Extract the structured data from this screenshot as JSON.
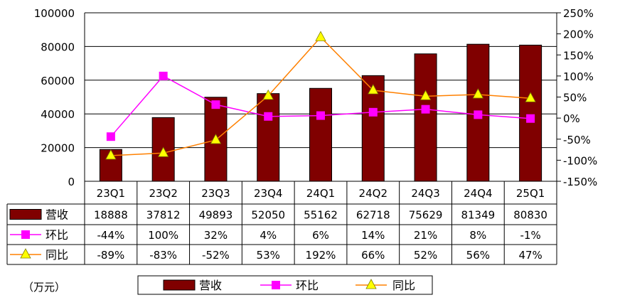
{
  "chart_data": {
    "type": "bar",
    "categories": [
      "23Q1",
      "23Q2",
      "23Q3",
      "23Q4",
      "24Q1",
      "24Q2",
      "24Q3",
      "24Q4",
      "25Q1"
    ],
    "series": [
      {
        "name": "营收",
        "type": "bar",
        "axis": "left",
        "values": [
          18888,
          37812,
          49893,
          52050,
          55162,
          62718,
          75629,
          81349,
          80830
        ],
        "labels": [
          "18888",
          "37812",
          "49893",
          "52050",
          "55162",
          "62718",
          "75629",
          "81349",
          "80830"
        ],
        "color": "#800000"
      },
      {
        "name": "环比",
        "type": "line",
        "axis": "right",
        "marker": "square",
        "values": [
          -44,
          100,
          32,
          4,
          6,
          14,
          21,
          8,
          -1
        ],
        "labels": [
          "-44%",
          "100%",
          "32%",
          "4%",
          "6%",
          "14%",
          "21%",
          "8%",
          "-1%"
        ],
        "color": "#ff00ff"
      },
      {
        "name": "同比",
        "type": "line",
        "axis": "right",
        "marker": "triangle",
        "values": [
          -89,
          -83,
          -52,
          53,
          192,
          66,
          52,
          56,
          47
        ],
        "labels": [
          "-89%",
          "-83%",
          "-52%",
          "53%",
          "192%",
          "66%",
          "52%",
          "56%",
          "47%"
        ],
        "color": "#ff8000",
        "marker_color": "#ffff00"
      }
    ],
    "yleft": {
      "min": 0,
      "max": 100000,
      "ticks": [
        "0",
        "20000",
        "40000",
        "60000",
        "80000",
        "100000"
      ]
    },
    "yright": {
      "min": -150,
      "max": 250,
      "ticks": [
        "-150%",
        "-100%",
        "-50%",
        "0%",
        "50%",
        "100%",
        "150%",
        "200%",
        "250%"
      ]
    },
    "grid": true,
    "legend_position": "bottom",
    "unit_label": "（万元）"
  }
}
